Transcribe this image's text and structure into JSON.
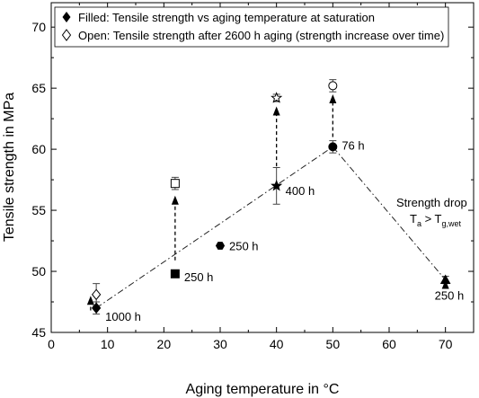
{
  "chart_data": {
    "type": "scatter",
    "xlabel": "Aging temperature in °C",
    "ylabel": "Tensile strength in MPa",
    "xlim": [
      0,
      75
    ],
    "ylim": [
      45,
      72
    ],
    "x_ticks": [
      "0",
      "10",
      "20",
      "30",
      "40",
      "50",
      "60",
      "70"
    ],
    "y_ticks": [
      "45",
      "50",
      "55",
      "60",
      "65",
      "70"
    ],
    "legend": {
      "position": "top-left",
      "filled_label": "Filled: Tensile strength vs aging temperature at saturation",
      "open_label": "Open: Tensile strength after 2600 h aging (strength increase over time)"
    },
    "filled_series": [
      {
        "x": 8,
        "y": 47.0,
        "err": 0.5,
        "marker": "diamond",
        "label": "1000 h"
      },
      {
        "x": 22,
        "y": 49.8,
        "err": 0.2,
        "marker": "square",
        "label": "250 h"
      },
      {
        "x": 30,
        "y": 52.1,
        "err": 0.1,
        "marker": "hexagon",
        "label": "250 h"
      },
      {
        "x": 40,
        "y": 57.0,
        "err": 1.5,
        "marker": "star",
        "label": "400 h"
      },
      {
        "x": 50,
        "y": 60.2,
        "err": 0.5,
        "marker": "circle",
        "label": "76 h"
      },
      {
        "x": 70,
        "y": 49.3,
        "err": 0.3,
        "marker": "triangle",
        "label": "250 h"
      }
    ],
    "open_series": [
      {
        "x": 8,
        "y": 48.1,
        "err": 0.9,
        "marker": "diamond"
      },
      {
        "x": 22,
        "y": 57.2,
        "err": 0.5,
        "marker": "square"
      },
      {
        "x": 40,
        "y": 64.2,
        "err": 0.3,
        "marker": "star"
      },
      {
        "x": 50,
        "y": 65.2,
        "err": 0.5,
        "marker": "circle"
      }
    ],
    "dash_dot_line": {
      "x": [
        8,
        50,
        70
      ],
      "y": [
        47.0,
        60.2,
        49.3
      ]
    },
    "arrows": [
      {
        "x": 7,
        "from": 46.8,
        "to": 48.0
      },
      {
        "x": 22,
        "from": 50.9,
        "to": 56.2
      },
      {
        "x": 40,
        "from": 58.6,
        "to": 63.5
      },
      {
        "x": 50,
        "from": 61.0,
        "to": 64.5
      },
      {
        "x": 70,
        "from": 49.3,
        "to": 49.3
      }
    ],
    "annotation": {
      "line1": "Strength drop",
      "T": "T",
      "sub_a": "a",
      "gt": " > T",
      "sub_g": "g,wet"
    }
  }
}
